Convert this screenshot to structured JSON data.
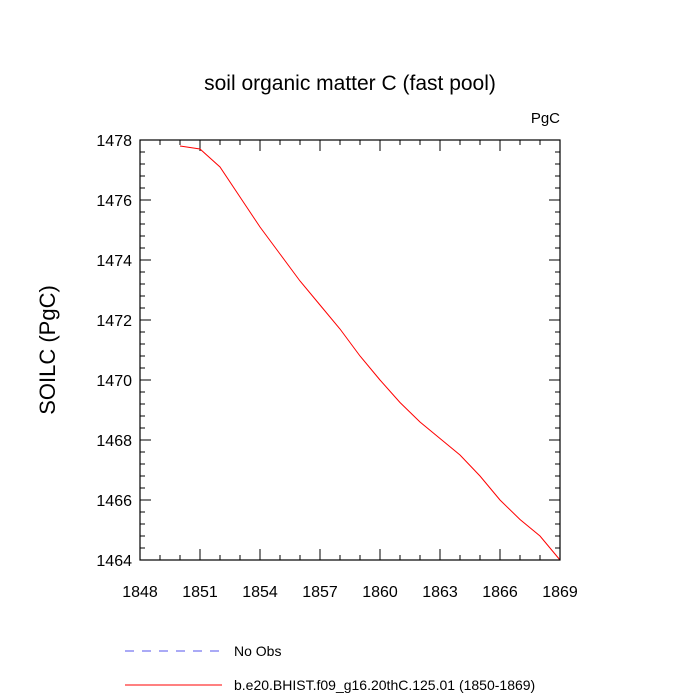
{
  "chart_data": {
    "type": "line",
    "title": "soil organic matter C (fast pool)",
    "units_label": "PgC",
    "ylabel": "SOILC  (PgC)",
    "xlabel": "",
    "xlim": [
      1848,
      1869
    ],
    "ylim": [
      1464,
      1478
    ],
    "x_ticks": [
      1848,
      1851,
      1854,
      1857,
      1860,
      1863,
      1866,
      1869
    ],
    "y_ticks": [
      1464,
      1466,
      1468,
      1470,
      1472,
      1474,
      1476,
      1478
    ],
    "grid": false,
    "legend_position": "bottom",
    "series": [
      {
        "name": "No Obs",
        "color": "#5555ee",
        "dash": "dashed",
        "x": [],
        "y": []
      },
      {
        "name": "b.e20.BHIST.f09_g16.20thC.125.01 (1850-1869)",
        "color": "#ff0000",
        "dash": "solid",
        "x": [
          1850,
          1851,
          1852,
          1853,
          1854,
          1855,
          1856,
          1857,
          1858,
          1859,
          1860,
          1861,
          1862,
          1863,
          1864,
          1865,
          1866,
          1867,
          1868,
          1869
        ],
        "y": [
          1477.8,
          1477.7,
          1477.1,
          1476.1,
          1475.1,
          1474.2,
          1473.3,
          1472.5,
          1471.7,
          1470.8,
          1470.0,
          1469.25,
          1468.6,
          1468.05,
          1467.5,
          1466.8,
          1466.0,
          1465.35,
          1464.8,
          1464.0
        ]
      }
    ]
  }
}
